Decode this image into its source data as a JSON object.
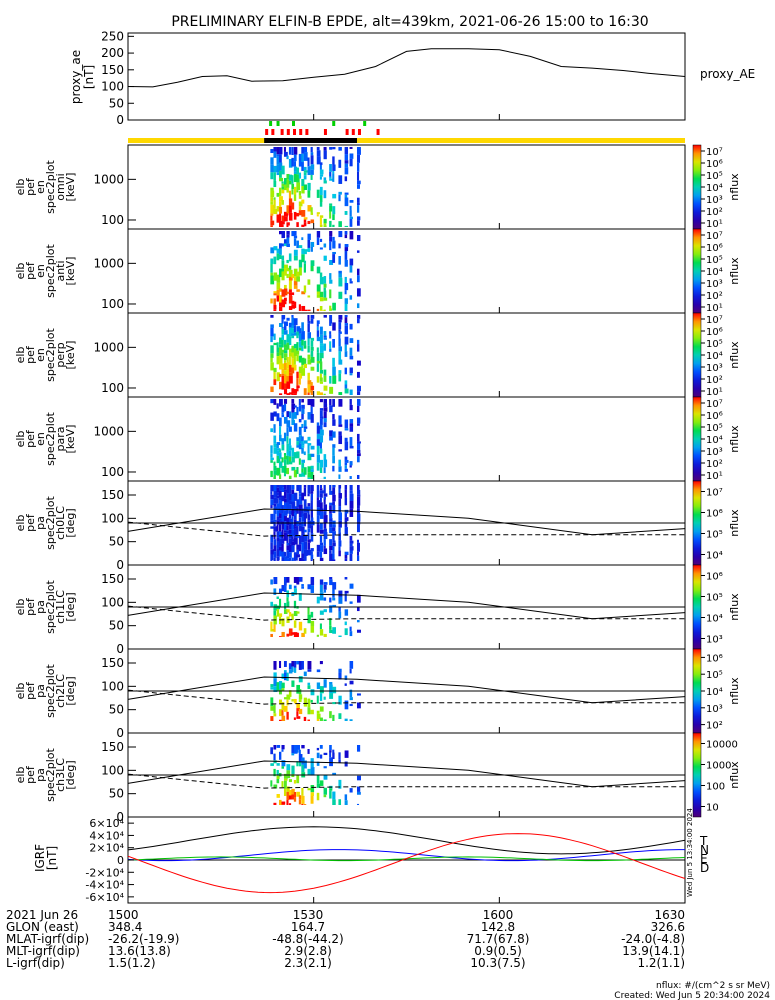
{
  "title": "PRELIMINARY ELFIN-B EPDE, alt=439km, 2021-06-26 15:00 to 16:30",
  "proxy_ae": {
    "ylabel_lines": [
      "proxy_ae",
      "[nT]"
    ],
    "legend": "proxy_AE",
    "yticks": [
      "0",
      "50",
      "100",
      "150",
      "200",
      "250"
    ],
    "ylim": [
      0,
      260
    ],
    "points": [
      [
        0,
        100
      ],
      [
        4,
        99
      ],
      [
        8,
        113
      ],
      [
        12,
        130
      ],
      [
        16,
        132
      ],
      [
        20,
        116
      ],
      [
        25,
        117
      ],
      [
        30,
        128
      ],
      [
        35,
        137
      ],
      [
        40,
        160
      ],
      [
        45,
        205
      ],
      [
        49,
        213
      ],
      [
        55,
        213
      ],
      [
        60,
        210
      ],
      [
        65,
        190
      ],
      [
        70,
        160
      ],
      [
        75,
        155
      ],
      [
        80,
        148
      ],
      [
        84,
        140
      ],
      [
        90,
        130
      ]
    ]
  },
  "colorbar_label": "nflux",
  "energy_panels": [
    {
      "name": "omni",
      "ylabel_lines": [
        "elb",
        "pef",
        "en",
        "spec2plot",
        "omni",
        "[keV]"
      ],
      "yticks": [
        "100",
        "1000"
      ],
      "cbar_ticks": [
        "10¹",
        "10²",
        "10³",
        "10⁴",
        "10⁵",
        "10⁶",
        "10⁷"
      ]
    },
    {
      "name": "anti",
      "ylabel_lines": [
        "elb",
        "pef",
        "en",
        "spec2plot",
        "anti",
        "[keV]"
      ],
      "yticks": [
        "100",
        "1000"
      ],
      "cbar_ticks": [
        "10¹",
        "10²",
        "10³",
        "10⁴",
        "10⁵",
        "10⁶",
        "10⁷"
      ]
    },
    {
      "name": "perp",
      "ylabel_lines": [
        "elb",
        "pef",
        "en",
        "spec2plot",
        "perp",
        "[keV]"
      ],
      "yticks": [
        "100",
        "1000"
      ],
      "cbar_ticks": [
        "10¹",
        "10²",
        "10³",
        "10⁴",
        "10⁵",
        "10⁶",
        "10⁷"
      ]
    },
    {
      "name": "para",
      "ylabel_lines": [
        "elb",
        "pef",
        "en",
        "spec2plot",
        "para",
        "[keV]"
      ],
      "yticks": [
        "100",
        "1000"
      ],
      "cbar_ticks": [
        "10¹",
        "10²",
        "10³",
        "10⁴",
        "10⁵",
        "10⁶",
        "10⁷"
      ]
    }
  ],
  "pa_panels": [
    {
      "name": "ch0LC",
      "ylabel_lines": [
        "elb",
        "pef",
        "pa",
        "spec2plot",
        "ch0LC",
        "[deg]"
      ],
      "yticks": [
        "0",
        "50",
        "100",
        "150"
      ],
      "cbar_ticks": [
        "10⁴",
        "10⁵",
        "10⁶",
        "10⁷"
      ]
    },
    {
      "name": "ch1LC",
      "ylabel_lines": [
        "elb",
        "pef",
        "pa",
        "spec2plot",
        "ch1LC",
        "[deg]"
      ],
      "yticks": [
        "0",
        "50",
        "100",
        "150"
      ],
      "cbar_ticks": [
        "10³",
        "10⁴",
        "10⁵",
        "10⁶"
      ]
    },
    {
      "name": "ch2LC",
      "ylabel_lines": [
        "elb",
        "pef",
        "pa",
        "spec2plot",
        "ch2LC",
        "[deg]"
      ],
      "yticks": [
        "0",
        "50",
        "100",
        "150"
      ],
      "cbar_ticks": [
        "10²",
        "10³",
        "10⁴",
        "10⁵",
        "10⁶"
      ]
    },
    {
      "name": "ch3LC",
      "ylabel_lines": [
        "elb",
        "pef",
        "pa",
        "spec2plot",
        "ch3LC",
        "[deg]"
      ],
      "yticks": [
        "0",
        "50",
        "100",
        "150"
      ],
      "cbar_ticks": [
        "10",
        "100",
        "1000",
        "10000"
      ]
    }
  ],
  "igrf": {
    "ylabel_lines": [
      "IGRF",
      "[nT]"
    ],
    "yticks": [
      "-6×10⁴",
      "-4×10⁴",
      "-2×10⁴",
      "0",
      "2×10⁴",
      "4×10⁴",
      "6×10⁴"
    ],
    "ylim": [
      -70000,
      70000
    ],
    "legend": [
      {
        "label": "T",
        "color": "#000000"
      },
      {
        "label": "N",
        "color": "#0000ff"
      },
      {
        "label": "E",
        "color": "#00c000"
      },
      {
        "label": "D",
        "color": "#ff0000"
      }
    ],
    "stamp": "Wed Jun  5 13:34:00 2024"
  },
  "bottom_table": {
    "time_ticks": [
      "1500",
      "1530",
      "1600",
      "1630"
    ],
    "rows": [
      {
        "label": "2021 Jun 26",
        "values": [
          "1500",
          "1530",
          "1600",
          "1630"
        ]
      },
      {
        "label": "GLON (east)",
        "values": [
          "348.4",
          "164.7",
          "142.8",
          "326.6"
        ]
      },
      {
        "label": "MLAT-igrf(dip)",
        "values": [
          "-26.2(-19.9)",
          "-48.8(-44.2)",
          "71.7(67.8)",
          "-24.0(-4.8)"
        ]
      },
      {
        "label": "MLT-igrf(dip)",
        "values": [
          "13.6(13.8)",
          "2.9(2.8)",
          "0.9(0.5)",
          "13.9(14.1)"
        ]
      },
      {
        "label": "L-igrf(dip)",
        "values": [
          "1.5(1.2)",
          "2.3(2.1)",
          "10.3(7.5)",
          "1.2(1.1)"
        ]
      }
    ]
  },
  "footer": {
    "units": "nflux: #/(cm^2 s sr MeV)",
    "created": "Created: Wed Jun  5 20:34:00 2024"
  },
  "chart_data": {
    "type": "heatmap",
    "title": "PRELIMINARY ELFIN-B EPDE, alt=439km, 2021-06-26 15:00 to 16:30",
    "x_range_minutes": [
      0,
      90
    ],
    "x_tick_labels": [
      "1500",
      "1530",
      "1600",
      "1630"
    ],
    "proxy_ae_nT": {
      "x_minutes": [
        0,
        4,
        8,
        12,
        16,
        20,
        25,
        30,
        35,
        40,
        45,
        49,
        55,
        60,
        65,
        70,
        75,
        80,
        84,
        90
      ],
      "values": [
        100,
        99,
        113,
        130,
        132,
        116,
        117,
        128,
        137,
        160,
        205,
        213,
        213,
        210,
        190,
        160,
        155,
        148,
        140,
        130
      ]
    },
    "science_zone_minutes": [
      22,
      37
    ],
    "energy_spectrogram_ylim_keV": [
      60,
      7000
    ],
    "pitch_angle_ylim_deg": [
      0,
      180
    ]
  }
}
